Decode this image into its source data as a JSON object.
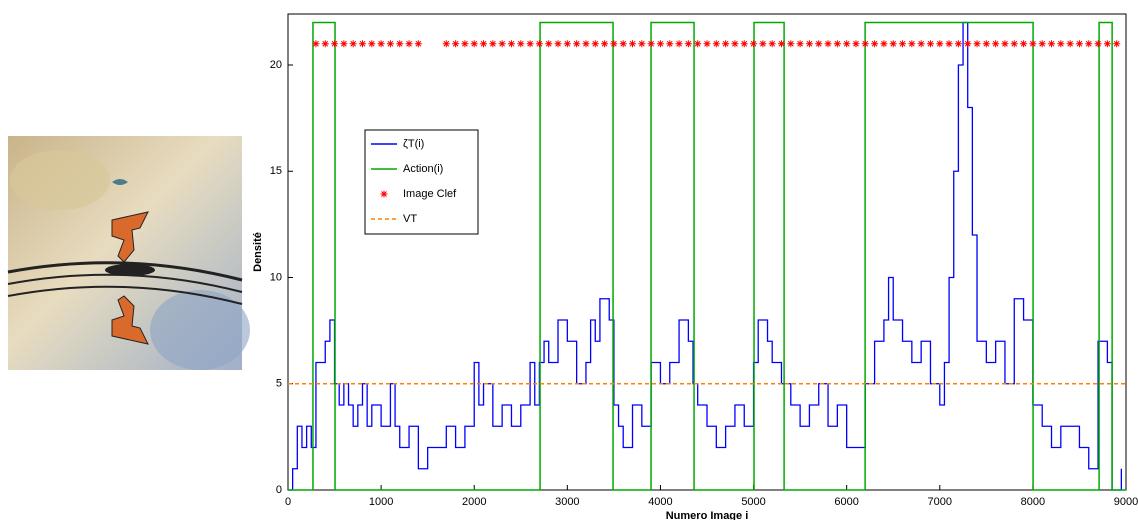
{
  "chart_data": {
    "type": "line",
    "xlabel": "Numero Image i",
    "ylabel": "Densité",
    "xlim": [
      0,
      9000
    ],
    "xticks": [
      0,
      1000,
      2000,
      3000,
      4000,
      5000,
      6000,
      7000,
      8000,
      9000
    ],
    "ylim": [
      0,
      22.4
    ],
    "yticks": [
      0,
      5,
      10,
      15,
      20
    ],
    "legend": "upper left",
    "series": [
      {
        "name": "ζT(i)",
        "color": "#0000ff",
        "style": "step",
        "x": [
          0,
          50,
          100,
          150,
          200,
          250,
          300,
          400,
          450,
          500,
          550,
          600,
          650,
          700,
          750,
          800,
          850,
          900,
          1000,
          1100,
          1150,
          1200,
          1300,
          1400,
          1500,
          1600,
          1700,
          1800,
          1900,
          2000,
          2050,
          2100,
          2200,
          2300,
          2400,
          2500,
          2600,
          2650,
          2700,
          2750,
          2800,
          2900,
          3000,
          3100,
          3200,
          3250,
          3300,
          3350,
          3450,
          3500,
          3550,
          3600,
          3700,
          3800,
          3900,
          4000,
          4100,
          4200,
          4300,
          4350,
          4400,
          4500,
          4600,
          4700,
          4800,
          4900,
          5000,
          5050,
          5150,
          5200,
          5300,
          5400,
          5500,
          5600,
          5700,
          5800,
          5900,
          6000,
          6100,
          6200,
          6300,
          6400,
          6450,
          6500,
          6600,
          6700,
          6800,
          6900,
          7000,
          7050,
          7100,
          7150,
          7200,
          7250,
          7300,
          7350,
          7400,
          7500,
          7600,
          7700,
          7800,
          7900,
          8000,
          8100,
          8200,
          8300,
          8400,
          8500,
          8600,
          8700,
          8800,
          8850,
          8950
        ],
        "values": [
          0,
          1,
          3,
          2,
          3,
          2,
          6,
          7,
          8,
          5,
          4,
          5,
          4,
          3,
          4,
          5,
          3,
          4,
          3,
          5,
          3,
          2,
          3,
          1,
          2,
          2,
          3,
          2,
          3,
          6,
          4,
          5,
          3,
          4,
          3,
          4,
          6,
          4,
          6,
          7,
          6,
          8,
          7,
          5,
          6,
          8,
          7,
          9,
          8,
          4,
          3,
          2,
          4,
          3,
          6,
          5,
          6,
          8,
          7,
          5,
          4,
          3,
          2,
          3,
          4,
          3,
          6,
          8,
          7,
          6,
          5,
          4,
          3,
          4,
          5,
          3,
          4,
          2,
          2,
          5,
          7,
          8,
          10,
          8,
          7,
          6,
          7,
          5,
          4,
          6,
          10,
          15,
          20,
          22,
          18,
          12,
          7,
          6,
          7,
          5,
          9,
          8,
          4,
          3,
          2,
          3,
          3,
          2,
          1,
          7,
          6,
          0,
          1
        ]
      },
      {
        "name": "Action(i)",
        "color": "#00aa00",
        "style": "line",
        "x": [
          0,
          268,
          268,
          505,
          505,
          2707,
          2707,
          3491,
          3491,
          3899,
          3899,
          4361,
          4361,
          5005,
          5005,
          5328,
          5328,
          6198,
          6198,
          8002,
          8002,
          8711,
          8711,
          8851,
          8851,
          9000
        ],
        "values": [
          0,
          0,
          22,
          22,
          0,
          0,
          22,
          22,
          0,
          0,
          22,
          22,
          0,
          0,
          22,
          22,
          0,
          0,
          22,
          22,
          0,
          0,
          22,
          22,
          0,
          0
        ]
      },
      {
        "name": "Image Clef",
        "color": "#ff0000",
        "style": "scatter",
        "x": [
          300,
          400,
          500,
          600,
          700,
          800,
          900,
          1000,
          1100,
          1200,
          1300,
          1400,
          1700,
          1800,
          1900,
          2000,
          2100,
          2200,
          2300,
          2400,
          2500,
          2600,
          2700,
          2800,
          2900,
          3000,
          3100,
          3200,
          3300,
          3400,
          3500,
          3600,
          3700,
          3800,
          3900,
          4000,
          4100,
          4200,
          4300,
          4400,
          4500,
          4600,
          4700,
          4800,
          4900,
          5000,
          5100,
          5200,
          5300,
          5400,
          5500,
          5600,
          5700,
          5800,
          5900,
          6000,
          6100,
          6200,
          6300,
          6400,
          6500,
          6600,
          6700,
          6800,
          6900,
          7000,
          7100,
          7200,
          7300,
          7400,
          7500,
          7600,
          7700,
          7800,
          7900,
          8000,
          8100,
          8200,
          8300,
          8400,
          8500,
          8600,
          8700,
          8800,
          8900
        ],
        "values": [
          21,
          21,
          21,
          21,
          21,
          21,
          21,
          21,
          21,
          21,
          21,
          21,
          21,
          21,
          21,
          21,
          21,
          21,
          21,
          21,
          21,
          21,
          21,
          21,
          21,
          21,
          21,
          21,
          21,
          21,
          21,
          21,
          21,
          21,
          21,
          21,
          21,
          21,
          21,
          21,
          21,
          21,
          21,
          21,
          21,
          21,
          21,
          21,
          21,
          21,
          21,
          21,
          21,
          21,
          21,
          21,
          21,
          21,
          21,
          21,
          21,
          21,
          21,
          21,
          21,
          21,
          21,
          21,
          21,
          21,
          21,
          21,
          21,
          21,
          21,
          21,
          21,
          21,
          21,
          21,
          21,
          21,
          21,
          21,
          21
        ]
      },
      {
        "name": "VT",
        "color": "#ff8000",
        "style": "dashed",
        "x": [
          0,
          9000
        ],
        "values": [
          5,
          5
        ]
      }
    ]
  }
}
